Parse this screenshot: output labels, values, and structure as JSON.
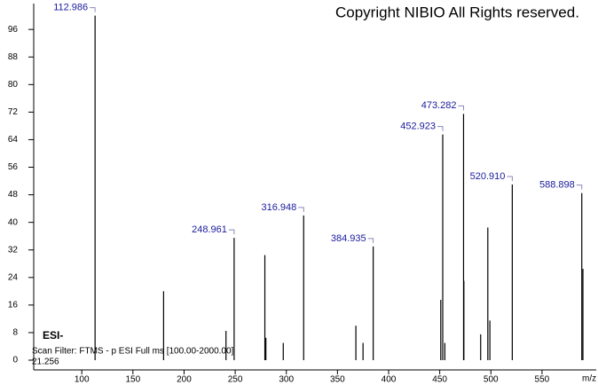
{
  "chart_data": {
    "type": "spectrum",
    "title": "Copyright NIBIO All Rights reserved.",
    "ion_mode": "ESI-",
    "scan_filter": "Scan Filter: FTMS - p ESI Full ms [100.00-2000.00]",
    "retention_time": "21.256",
    "x_label": "m/z",
    "x": [
      112.986,
      180.0,
      241.0,
      248.961,
      279.0,
      280.0,
      297.0,
      316.948,
      368.0,
      375.0,
      384.935,
      451.0,
      452.923,
      455.0,
      473.282,
      473.6,
      490.0,
      497.0,
      499.0,
      520.91,
      588.898,
      590.0
    ],
    "values": [
      100,
      20,
      8.5,
      35.5,
      30.5,
      6.5,
      5,
      42,
      10,
      5,
      33,
      17.5,
      65.5,
      5,
      71.5,
      23,
      7.5,
      38.5,
      11.5,
      51,
      48.5,
      26.5
    ],
    "x_labels": [
      "112.986",
      null,
      null,
      "248.961",
      null,
      null,
      null,
      "316.948",
      null,
      null,
      "384.935",
      null,
      "452.923",
      null,
      "473.282",
      null,
      null,
      null,
      null,
      "520.910",
      "588.898",
      null
    ],
    "color": "#000000",
    "label_color": "#1a1a9c",
    "xlim": [
      53,
      603
    ],
    "xticks": [
      100,
      150,
      200,
      250,
      300,
      350,
      400,
      450,
      500,
      550
    ],
    "ylim": [
      0,
      103
    ],
    "yticks": [
      0,
      8,
      16,
      24,
      32,
      40,
      48,
      56,
      64,
      72,
      80,
      88,
      96
    ]
  }
}
